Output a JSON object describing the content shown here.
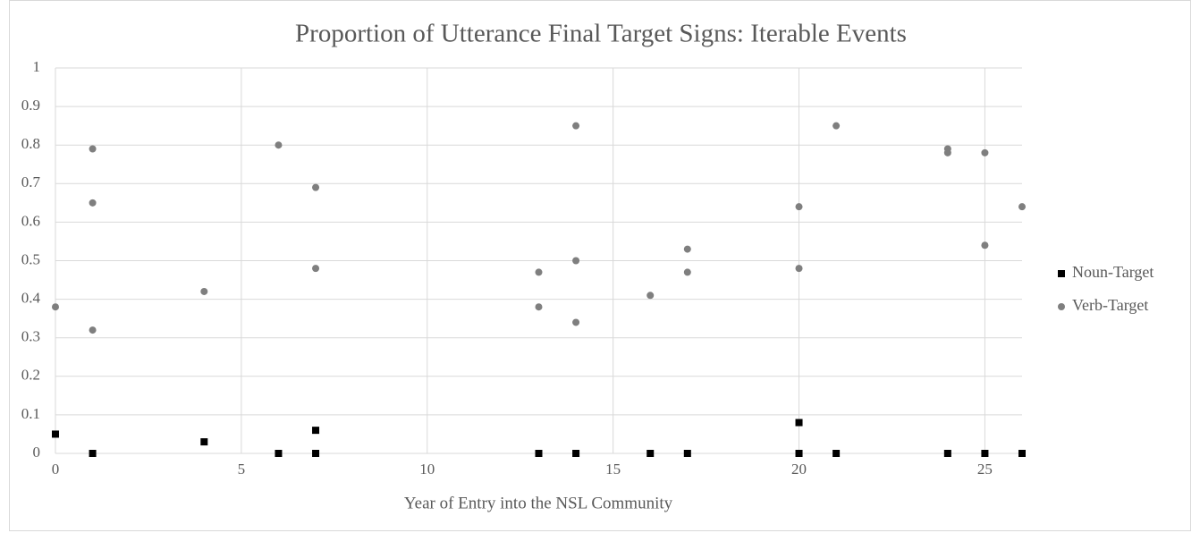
{
  "chart_data": {
    "type": "scatter",
    "title": "Proportion of Utterance Final Target Signs: Iterable Events",
    "x_label": "Year of Entry into the NSL Community",
    "xlim": [
      0,
      26
    ],
    "xticks": [
      0,
      5,
      10,
      15,
      20,
      25
    ],
    "ylim": [
      0,
      1
    ],
    "yticks": [
      0,
      0.1,
      0.2,
      0.3,
      0.4,
      0.5,
      0.6,
      0.7,
      0.8,
      0.9,
      1
    ],
    "grid": true,
    "legend": "right",
    "series": [
      {
        "name": "Noun-Target",
        "color": "#000000",
        "marker": "square",
        "x": [
          0,
          1,
          4,
          6,
          7,
          7,
          13,
          14,
          16,
          17,
          20,
          20,
          21,
          24,
          25,
          26
        ],
        "values": [
          0.05,
          0,
          0.03,
          0,
          0.06,
          0,
          0,
          0,
          0,
          0,
          0.08,
          0,
          0,
          0,
          0,
          0
        ]
      },
      {
        "name": "Verb-Target",
        "color": "#7f7f7f",
        "marker": "circle",
        "x": [
          0,
          1,
          1,
          1,
          4,
          6,
          7,
          7,
          13,
          13,
          14,
          14,
          14,
          16,
          17,
          17,
          20,
          20,
          21,
          24,
          24,
          25,
          25,
          26
        ],
        "values": [
          0.38,
          0.79,
          0.65,
          0.32,
          0.42,
          0.8,
          0.69,
          0.48,
          0.47,
          0.38,
          0.85,
          0.5,
          0.34,
          0.41,
          0.53,
          0.47,
          0.64,
          0.48,
          0.85,
          0.79,
          0.78,
          0.78,
          0.54,
          0.64
        ]
      }
    ]
  }
}
